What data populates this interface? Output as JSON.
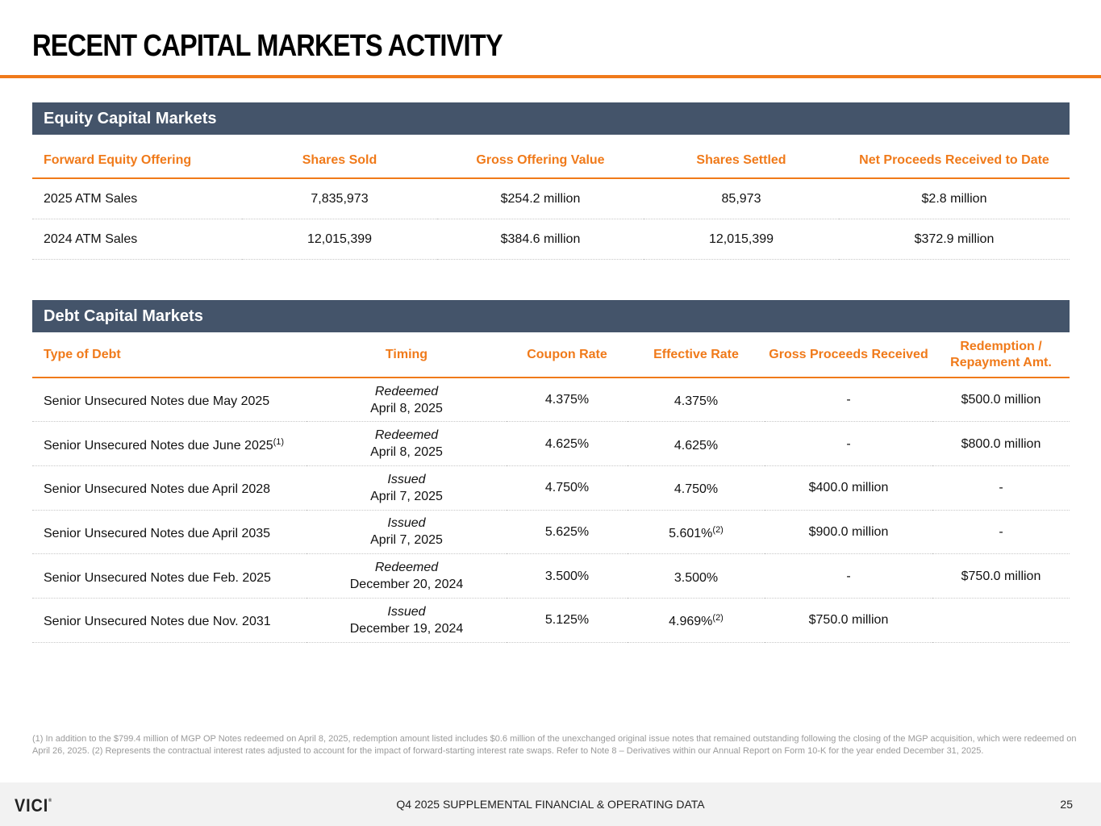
{
  "title": "RECENT CAPITAL MARKETS ACTIVITY",
  "equity": {
    "heading": "Equity Capital Markets",
    "columns": [
      "Forward Equity Offering",
      "Shares Sold",
      "Gross Offering Value",
      "Shares Settled",
      "Net Proceeds Received to Date"
    ],
    "rows": [
      [
        "2025 ATM Sales",
        "7,835,973",
        "$254.2 million",
        "85,973",
        "$2.8 million"
      ],
      [
        "2024 ATM Sales",
        "12,015,399",
        "$384.6 million",
        "12,015,399",
        "$372.9 million"
      ]
    ]
  },
  "debt": {
    "heading": "Debt Capital Markets",
    "columns": [
      "Type of Debt",
      "Timing",
      "Coupon Rate",
      "Effective Rate",
      "Gross Proceeds Received",
      "Redemption / Repayment Amt."
    ],
    "rows": [
      {
        "type": "Senior Unsecured Notes due May 2025",
        "type_note": "",
        "status": "Redeemed",
        "date": "April 8, 2025",
        "coupon": "4.375%",
        "effective": "4.375%",
        "eff_note": "",
        "gross": "-",
        "redemption": "$500.0 million"
      },
      {
        "type": "Senior Unsecured Notes due June 2025",
        "type_note": "(1)",
        "status": "Redeemed",
        "date": "April 8, 2025",
        "coupon": "4.625%",
        "effective": "4.625%",
        "eff_note": "",
        "gross": "-",
        "redemption": "$800.0 million"
      },
      {
        "type": "Senior Unsecured Notes due April 2028",
        "type_note": "",
        "status": "Issued",
        "date": "April 7, 2025",
        "coupon": "4.750%",
        "effective": "4.750%",
        "eff_note": "",
        "gross": "$400.0 million",
        "redemption": "-"
      },
      {
        "type": "Senior Unsecured Notes due April 2035",
        "type_note": "",
        "status": "Issued",
        "date": "April 7, 2025",
        "coupon": "5.625%",
        "effective": "5.601%",
        "eff_note": "(2)",
        "gross": "$900.0 million",
        "redemption": "-"
      },
      {
        "type": "Senior Unsecured Notes due Feb. 2025",
        "type_note": "",
        "status": "Redeemed",
        "date": "December 20, 2024",
        "coupon": "3.500%",
        "effective": "3.500%",
        "eff_note": "",
        "gross": "-",
        "redemption": "$750.0 million"
      },
      {
        "type": "Senior Unsecured Notes due Nov. 2031",
        "type_note": "",
        "status": "Issued",
        "date": "December 19, 2024",
        "coupon": "5.125%",
        "effective": "4.969%",
        "eff_note": "(2)",
        "gross": "$750.0 million",
        "redemption": ""
      }
    ]
  },
  "footnote": "(1) In addition to the $799.4 million of MGP OP Notes redeemed on April 8, 2025, redemption amount listed includes $0.6 million of the unexchanged original issue notes that remained outstanding following the closing of the MGP acquisition, which were redeemed on April 26, 2025. (2) Represents the contractual interest rates adjusted to account for the impact of forward-starting interest rate swaps. Refer to Note 8 – Derivatives within our Annual Report on Form 10-K for the year ended December 31, 2025.",
  "footer": {
    "logo": "VICI",
    "text": "Q4 2025 SUPPLEMENTAL FINANCIAL & OPERATING DATA",
    "page": "25"
  },
  "colors": {
    "accent": "#f07a1a",
    "band": "#44546a"
  }
}
